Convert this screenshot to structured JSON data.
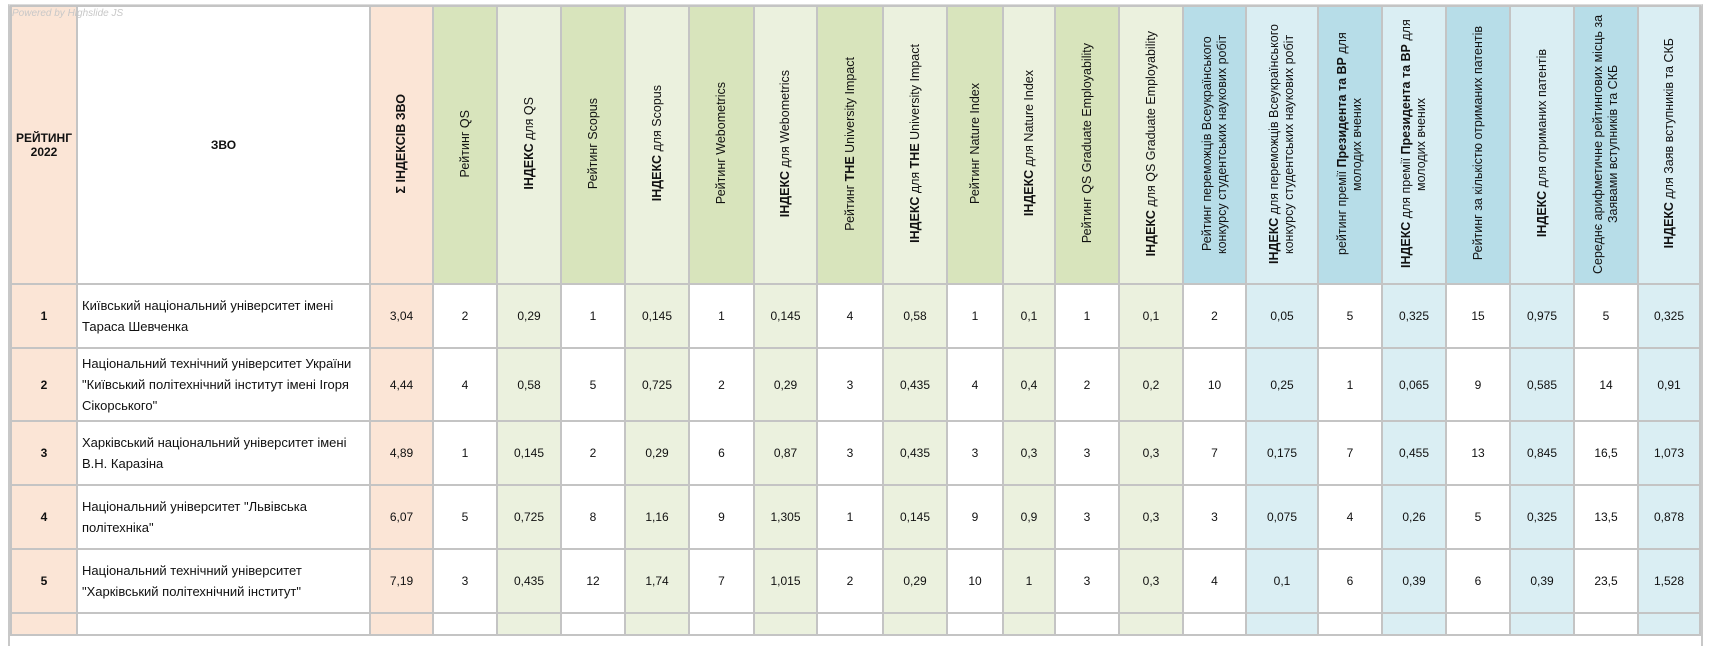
{
  "watermark": "Powered by Highslide JS",
  "headers": {
    "rank": "РЕЙТИНГ 2022",
    "name": "ЗВО",
    "sum": [
      {
        "t": "Σ  ІНДЕКСІВ  ЗВО",
        "b": true
      }
    ],
    "cols": [
      {
        "group": "gR",
        "segs": [
          {
            "t": "Рейтинг  QS",
            "b": false
          }
        ]
      },
      {
        "group": "gI",
        "segs": [
          {
            "t": "ІНДЕКС",
            "b": true
          },
          {
            "t": "  для  ",
            "b": false
          },
          {
            "t": "QS",
            "b": false
          }
        ]
      },
      {
        "group": "gR",
        "segs": [
          {
            "t": "Рейтинг  Scopus",
            "b": false
          }
        ]
      },
      {
        "group": "gI",
        "segs": [
          {
            "t": "ІНДЕКС",
            "b": true
          },
          {
            "t": " для Scopus",
            "b": false
          }
        ]
      },
      {
        "group": "gR",
        "segs": [
          {
            "t": "Рейтинг  Webometrics",
            "b": false
          }
        ]
      },
      {
        "group": "gI",
        "segs": [
          {
            "t": "ІНДЕКС",
            "b": true
          },
          {
            "t": "   для Webometrics",
            "b": false
          }
        ]
      },
      {
        "group": "gR",
        "segs": [
          {
            "t": "Рейтинг  ",
            "b": false
          },
          {
            "t": "THE",
            "b": true
          },
          {
            "t": " University Impact",
            "b": false
          }
        ]
      },
      {
        "group": "gI",
        "segs": [
          {
            "t": "ІНДЕКС",
            "b": true
          },
          {
            "t": "  для  ",
            "b": false
          },
          {
            "t": "THE",
            "b": true
          },
          {
            "t": " University Impact",
            "b": false
          }
        ]
      },
      {
        "group": "gR",
        "segs": [
          {
            "t": "Рейтинг   Nature Index",
            "b": false
          }
        ]
      },
      {
        "group": "gI",
        "segs": [
          {
            "t": "ІНДЕКС",
            "b": true
          },
          {
            "t": "  для   Nature Index",
            "b": false
          }
        ]
      },
      {
        "group": "gR",
        "segs": [
          {
            "t": "Рейтинг   QS Graduate Employability",
            "b": false
          }
        ]
      },
      {
        "group": "gI",
        "segs": [
          {
            "t": "ІНДЕКС",
            "b": true
          },
          {
            "t": " для QS Graduate Employability",
            "b": false
          }
        ]
      },
      {
        "group": "bR",
        "segs": [
          {
            "t": "Рейтинг  переможців  Всеукраїнського конкурсу студентських наукових робіт",
            "b": false
          }
        ]
      },
      {
        "group": "bI",
        "segs": [
          {
            "t": "ІНДЕКС",
            "b": true
          },
          {
            "t": " для  переможців Всеукраїнського конкурсу студентських наукових робіт",
            "b": false
          }
        ]
      },
      {
        "group": "bR",
        "segs": [
          {
            "t": "рейтинг премії  ",
            "b": false
          },
          {
            "t": "Президента та ВР",
            "b": true
          },
          {
            "t": "  для молодих вчених",
            "b": false
          }
        ]
      },
      {
        "group": "bI",
        "segs": [
          {
            "t": "ІНДЕКС",
            "b": true
          },
          {
            "t": " для  премії  ",
            "b": false
          },
          {
            "t": "Президента та ВР",
            "b": true
          },
          {
            "t": " для молодих вчених",
            "b": false
          }
        ]
      },
      {
        "group": "bR",
        "segs": [
          {
            "t": "Рейтинг за кількістю отриманих патентів",
            "b": false
          }
        ]
      },
      {
        "group": "bI",
        "segs": [
          {
            "t": "ІНДЕКС",
            "b": true
          },
          {
            "t": " для  отриманих патентів",
            "b": false
          }
        ]
      },
      {
        "group": "bR",
        "segs": [
          {
            "t": "Середнє арифметичне рейтингових місць за Заявами вступників та СКБ",
            "b": false
          }
        ]
      },
      {
        "group": "bI",
        "segs": [
          {
            "t": "ІНДЕКС",
            "b": true
          },
          {
            "t": " для  Заяв вступників та СКБ",
            "b": false
          }
        ]
      }
    ]
  },
  "rows": [
    {
      "rank": "1",
      "name": "Київський національний університет імені Тараса Шевченка",
      "sum": "3,04",
      "values": [
        "2",
        "0,29",
        "1",
        "0,145",
        "1",
        "0,145",
        "4",
        "0,58",
        "1",
        "0,1",
        "1",
        "0,1",
        "2",
        "0,05",
        "5",
        "0,325",
        "15",
        "0,975",
        "5",
        "0,325"
      ]
    },
    {
      "rank": "2",
      "name": "Національний технічний університет України \"Київський політехнічний інститут імені Ігоря Сікорського\"",
      "sum": "4,44",
      "values": [
        "4",
        "0,58",
        "5",
        "0,725",
        "2",
        "0,29",
        "3",
        "0,435",
        "4",
        "0,4",
        "2",
        "0,2",
        "10",
        "0,25",
        "1",
        "0,065",
        "9",
        "0,585",
        "14",
        "0,91"
      ]
    },
    {
      "rank": "3",
      "name": "Харківський національний університет імені В.Н. Каразіна",
      "sum": "4,89",
      "values": [
        "1",
        "0,145",
        "2",
        "0,29",
        "6",
        "0,87",
        "3",
        "0,435",
        "3",
        "0,3",
        "3",
        "0,3",
        "7",
        "0,175",
        "7",
        "0,455",
        "13",
        "0,845",
        "16,5",
        "1,073"
      ]
    },
    {
      "rank": "4",
      "name": "Національний університет \"Львівська політехніка\"",
      "sum": "6,07",
      "values": [
        "5",
        "0,725",
        "8",
        "1,16",
        "9",
        "1,305",
        "1",
        "0,145",
        "9",
        "0,9",
        "3",
        "0,3",
        "3",
        "0,075",
        "4",
        "0,26",
        "5",
        "0,325",
        "13,5",
        "0,878"
      ]
    },
    {
      "rank": "5",
      "name": "Національний технічний університет \"Харківський політехнічний інститут\"",
      "sum": "7,19",
      "values": [
        "3",
        "0,435",
        "12",
        "1,74",
        "7",
        "1,015",
        "2",
        "0,29",
        "10",
        "1",
        "3",
        "0,3",
        "4",
        "0,1",
        "6",
        "0,39",
        "6",
        "0,39",
        "23,5",
        "1,528"
      ]
    }
  ]
}
